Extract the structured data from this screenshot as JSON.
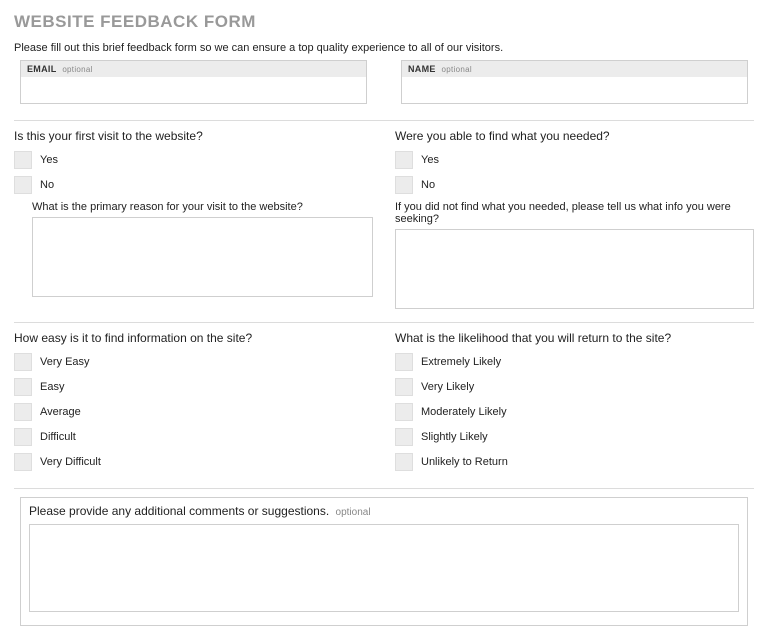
{
  "header": {
    "title": "WEBSITE FEEDBACK FORM",
    "intro": "Please fill out this brief feedback form so we can ensure a top quality experience to all of our visitors."
  },
  "fields": {
    "email": {
      "label": "EMAIL",
      "optional": "optional"
    },
    "name": {
      "label": "NAME",
      "optional": "optional"
    }
  },
  "q1": {
    "title": "Is this your first visit to the website?",
    "options": [
      "Yes",
      "No"
    ],
    "sub": "What is the primary reason for your visit to the website?"
  },
  "q2": {
    "title": "Were you able to find what you needed?",
    "options": [
      "Yes",
      "No"
    ],
    "sub": "If you did not find what you needed, please tell us what info you were seeking?"
  },
  "q3": {
    "title": "How easy is it to find information on the site?",
    "options": [
      "Very Easy",
      "Easy",
      "Average",
      "Difficult",
      "Very Difficult"
    ]
  },
  "q4": {
    "title": "What is the likelihood that you will return to the site?",
    "options": [
      "Extremely Likely",
      "Very Likely",
      "Moderately Likely",
      "Slightly Likely",
      "Unlikely to Return"
    ]
  },
  "comments": {
    "label": "Please provide any additional comments or suggestions.",
    "optional": "optional"
  },
  "style": {
    "title_color": "#999999",
    "text_color": "#222222",
    "border_color": "#cfcfcf",
    "divider_color": "#dcdcdc",
    "checkbox_bg": "#ececec",
    "label_bar_bg": "#ececec",
    "background": "#ffffff",
    "title_fontsize": 17,
    "question_fontsize": 12,
    "body_fontsize": 11,
    "small_label_fontsize": 9
  }
}
